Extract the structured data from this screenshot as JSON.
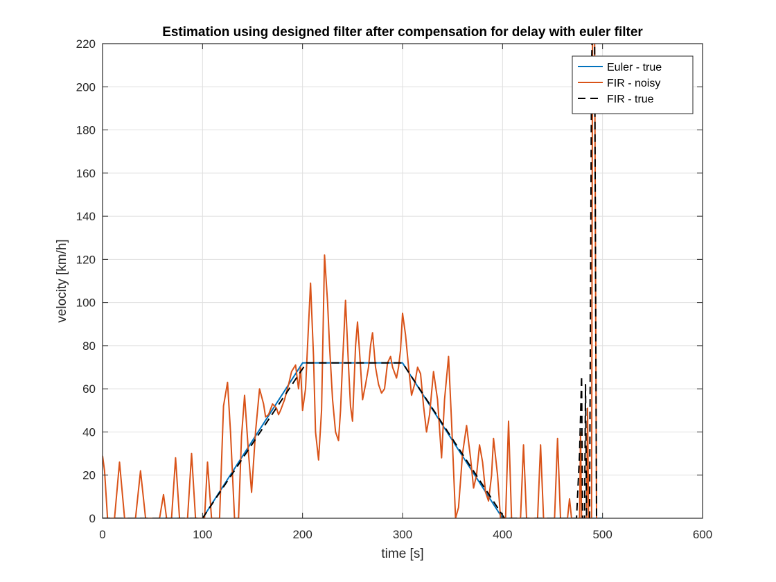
{
  "chart_data": {
    "type": "line",
    "title": "Estimation using designed filter after compensation for delay with euler filter",
    "xlabel": "time [s]",
    "ylabel": "velocity [km/h]",
    "xlim": [
      0,
      600
    ],
    "ylim": [
      0,
      220
    ],
    "xticks": [
      "0",
      "100",
      "200",
      "300",
      "400",
      "500",
      "600"
    ],
    "yticks": [
      "0",
      "20",
      "40",
      "60",
      "80",
      "100",
      "120",
      "140",
      "160",
      "180",
      "200",
      "220"
    ],
    "grid": true,
    "legend_position": "top-right",
    "series": [
      {
        "name": "Euler - true",
        "color": "#0072BD",
        "style": "solid",
        "points": [
          [
            0,
            0
          ],
          [
            100,
            0
          ],
          [
            200,
            72
          ],
          [
            300,
            72
          ],
          [
            400,
            0
          ],
          [
            500,
            0
          ]
        ]
      },
      {
        "name": "FIR - noisy",
        "color": "#D95319",
        "style": "solid",
        "points": [
          [
            0,
            29
          ],
          [
            2,
            22
          ],
          [
            5,
            0
          ],
          [
            12,
            0
          ],
          [
            17,
            26
          ],
          [
            22,
            0
          ],
          [
            33,
            0
          ],
          [
            38,
            22
          ],
          [
            43,
            0
          ],
          [
            57,
            0
          ],
          [
            61,
            11
          ],
          [
            64,
            0
          ],
          [
            69,
            0
          ],
          [
            73,
            28
          ],
          [
            77,
            0
          ],
          [
            85,
            0
          ],
          [
            89,
            30
          ],
          [
            93,
            0
          ],
          [
            102,
            0
          ],
          [
            105,
            26
          ],
          [
            109,
            0
          ],
          [
            112,
            0
          ],
          [
            117,
            0
          ],
          [
            121,
            52
          ],
          [
            125,
            63
          ],
          [
            128,
            40
          ],
          [
            132,
            0
          ],
          [
            136,
            0
          ],
          [
            139,
            38
          ],
          [
            142,
            57
          ],
          [
            146,
            30
          ],
          [
            149,
            12
          ],
          [
            153,
            40
          ],
          [
            157,
            60
          ],
          [
            161,
            53
          ],
          [
            163,
            47
          ],
          [
            166,
            48
          ],
          [
            170,
            53
          ],
          [
            174,
            51
          ],
          [
            176,
            48
          ],
          [
            178,
            50
          ],
          [
            182,
            55
          ],
          [
            186,
            62
          ],
          [
            189,
            68
          ],
          [
            193,
            71
          ],
          [
            196,
            60
          ],
          [
            198,
            70
          ],
          [
            200,
            50
          ],
          [
            203,
            60
          ],
          [
            205,
            80
          ],
          [
            208,
            109
          ],
          [
            211,
            75
          ],
          [
            213,
            40
          ],
          [
            216,
            27
          ],
          [
            219,
            50
          ],
          [
            222,
            122
          ],
          [
            225,
            100
          ],
          [
            227,
            80
          ],
          [
            230,
            55
          ],
          [
            233,
            40
          ],
          [
            236,
            36
          ],
          [
            238,
            50
          ],
          [
            240,
            72
          ],
          [
            243,
            101
          ],
          [
            246,
            70
          ],
          [
            248,
            52
          ],
          [
            250,
            45
          ],
          [
            253,
            80
          ],
          [
            255,
            91
          ],
          [
            258,
            70
          ],
          [
            260,
            55
          ],
          [
            263,
            62
          ],
          [
            266,
            70
          ],
          [
            268,
            80
          ],
          [
            270,
            86
          ],
          [
            273,
            70
          ],
          [
            276,
            62
          ],
          [
            279,
            58
          ],
          [
            282,
            60
          ],
          [
            285,
            72
          ],
          [
            288,
            75
          ],
          [
            290,
            70
          ],
          [
            294,
            65
          ],
          [
            296,
            70
          ],
          [
            298,
            78
          ],
          [
            300,
            95
          ],
          [
            303,
            85
          ],
          [
            306,
            70
          ],
          [
            309,
            57
          ],
          [
            312,
            62
          ],
          [
            315,
            70
          ],
          [
            318,
            67
          ],
          [
            321,
            52
          ],
          [
            324,
            40
          ],
          [
            327,
            48
          ],
          [
            331,
            68
          ],
          [
            335,
            55
          ],
          [
            339,
            28
          ],
          [
            342,
            55
          ],
          [
            346,
            75
          ],
          [
            349,
            45
          ],
          [
            353,
            0
          ],
          [
            356,
            5
          ],
          [
            360,
            30
          ],
          [
            364,
            43
          ],
          [
            368,
            28
          ],
          [
            371,
            14
          ],
          [
            374,
            20
          ],
          [
            377,
            34
          ],
          [
            380,
            26
          ],
          [
            383,
            12
          ],
          [
            386,
            8
          ],
          [
            389,
            20
          ],
          [
            391,
            37
          ],
          [
            395,
            20
          ],
          [
            398,
            0
          ],
          [
            403,
            0
          ],
          [
            406,
            45
          ],
          [
            409,
            0
          ],
          [
            418,
            0
          ],
          [
            421,
            34
          ],
          [
            424,
            0
          ],
          [
            435,
            0
          ],
          [
            438,
            34
          ],
          [
            441,
            0
          ],
          [
            452,
            0
          ],
          [
            455,
            37
          ],
          [
            458,
            0
          ],
          [
            465,
            0
          ],
          [
            467,
            9
          ],
          [
            469,
            0
          ],
          [
            477,
            0
          ],
          [
            478,
            40
          ],
          [
            479,
            0
          ],
          [
            484,
            0
          ],
          [
            485,
            51
          ],
          [
            486,
            0
          ],
          [
            489,
            0
          ],
          [
            490,
            230
          ],
          [
            492,
            230
          ],
          [
            494,
            0
          ],
          [
            495,
            0
          ]
        ]
      },
      {
        "name": "FIR - true",
        "color": "#000000",
        "style": "dashed",
        "points": [
          [
            0,
            0
          ],
          [
            100,
            0
          ],
          [
            204,
            72
          ],
          [
            300,
            72
          ],
          [
            402,
            0
          ],
          [
            474,
            0
          ],
          [
            477,
            30
          ],
          [
            479,
            66
          ],
          [
            480,
            0
          ],
          [
            482,
            0
          ],
          [
            483,
            62
          ],
          [
            484,
            0
          ],
          [
            487,
            0
          ],
          [
            489,
            210
          ],
          [
            490,
            230
          ],
          [
            492,
            230
          ],
          [
            494,
            0
          ],
          [
            495,
            0
          ]
        ]
      }
    ]
  }
}
